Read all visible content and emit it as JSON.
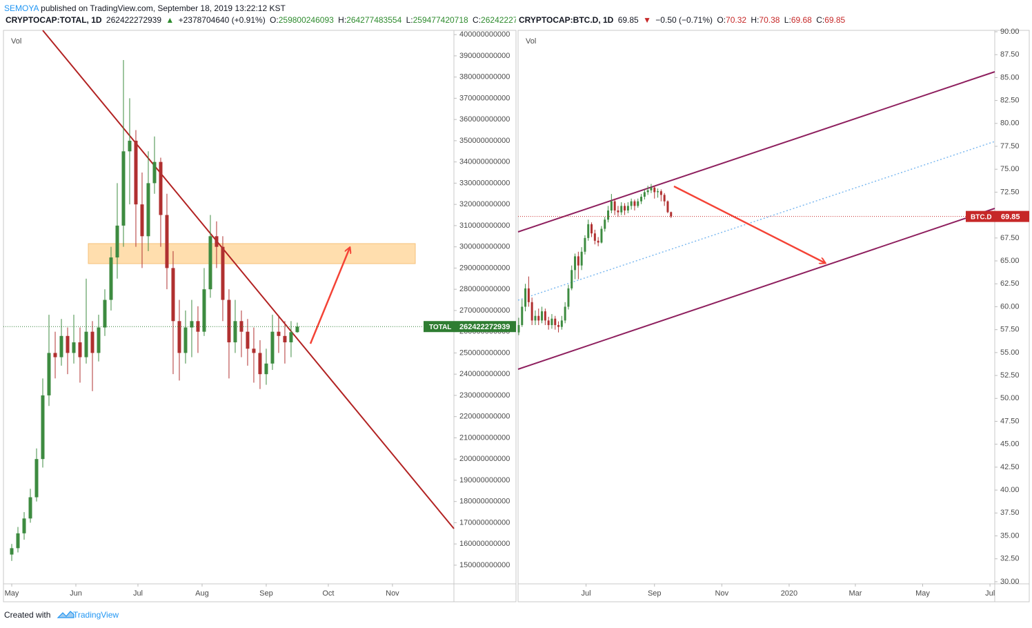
{
  "header": {
    "author": "SEMOYA",
    "published": "published on TradingView.com, September 18, 2019 13:22:12 KST"
  },
  "footer": {
    "created": "Created with",
    "brand": "TradingView"
  },
  "chart_data": [
    {
      "type": "candlestick",
      "symbol": "CRYPTOCAP:TOTAL, 1D",
      "change": "+2378704640 (+0.91%)",
      "ohlc_labels": [
        "O:",
        "H:",
        "L:",
        "C:"
      ],
      "pane_label": "Vol",
      "price_tag": "TOTAL",
      "up_color": "#3d8b40",
      "down_color": "#b03030",
      "last_color": "#2f7d32",
      "xlim": [
        -4,
        213.7
      ],
      "xticks": [
        {
          "value": 0,
          "label": "May"
        },
        {
          "value": 31,
          "label": "Jun"
        },
        {
          "value": 61,
          "label": "Jul"
        },
        {
          "value": 92,
          "label": "Aug"
        },
        {
          "value": 123,
          "label": "Sep"
        },
        {
          "value": 153,
          "label": "Oct"
        },
        {
          "value": 184,
          "label": "Nov"
        }
      ],
      "ylim": [
        141200000000.0,
        402000000000.0
      ],
      "yticks": [
        150000000000.0,
        160000000000.0,
        170000000000.0,
        180000000000.0,
        190000000000.0,
        200000000000.0,
        210000000000.0,
        220000000000.0,
        230000000000.0,
        240000000000.0,
        250000000000.0,
        260000000000.0,
        270000000000.0,
        280000000000.0,
        290000000000.0,
        300000000000.0,
        310000000000.0,
        320000000000.0,
        330000000000.0,
        340000000000.0,
        350000000000.0,
        360000000000.0,
        370000000000.0,
        380000000000.0,
        390000000000.0,
        400000000000.0
      ],
      "x": [
        0,
        3,
        6,
        9,
        12,
        15,
        18,
        21,
        24,
        27,
        30,
        33,
        36,
        39,
        42,
        45,
        48,
        51,
        54,
        57,
        60,
        63,
        66,
        69,
        72,
        75,
        78,
        81,
        84,
        87,
        90,
        93,
        96,
        99,
        102,
        105,
        108,
        111,
        114,
        117,
        120,
        123,
        126,
        129,
        132,
        135,
        138
      ],
      "ohlc": [
        [
          155000000000.0,
          160000000000.0,
          152000000000.0,
          158000000000.0
        ],
        [
          158000000000.0,
          168000000000.0,
          156000000000.0,
          165000000000.0
        ],
        [
          165000000000.0,
          175000000000.0,
          162000000000.0,
          172000000000.0
        ],
        [
          172000000000.0,
          186000000000.0,
          170000000000.0,
          182000000000.0
        ],
        [
          182000000000.0,
          205000000000.0,
          180000000000.0,
          200000000000.0
        ],
        [
          200000000000.0,
          238000000000.0,
          196000000000.0,
          230000000000.0
        ],
        [
          230000000000.0,
          268000000000.0,
          225000000000.0,
          250000000000.0
        ],
        [
          250000000000.0,
          260000000000.0,
          238000000000.0,
          248000000000.0
        ],
        [
          248000000000.0,
          266000000000.0,
          244000000000.0,
          258000000000.0
        ],
        [
          258000000000.0,
          262000000000.0,
          240000000000.0,
          250000000000.0
        ],
        [
          250000000000.0,
          268000000000.0,
          245000000000.0,
          255000000000.0
        ],
        [
          255000000000.0,
          262000000000.0,
          236000000000.0,
          248000000000.0
        ],
        [
          248000000000.0,
          285000000000.0,
          245000000000.0,
          260000000000.0
        ],
        [
          260000000000.0,
          265000000000.0,
          232000000000.0,
          250000000000.0
        ],
        [
          250000000000.0,
          268000000000.0,
          246000000000.0,
          262000000000.0
        ],
        [
          262000000000.0,
          280000000000.0,
          258000000000.0,
          275000000000.0
        ],
        [
          275000000000.0,
          300000000000.0,
          270000000000.0,
          295000000000.0
        ],
        [
          295000000000.0,
          330000000000.0,
          285000000000.0,
          310000000000.0
        ],
        [
          310000000000.0,
          388000000000.0,
          300000000000.0,
          345000000000.0
        ],
        [
          345000000000.0,
          370000000000.0,
          320000000000.0,
          350000000000.0
        ],
        [
          350000000000.0,
          355000000000.0,
          300000000000.0,
          320000000000.0
        ],
        [
          320000000000.0,
          335000000000.0,
          290000000000.0,
          305000000000.0
        ],
        [
          305000000000.0,
          345000000000.0,
          298000000000.0,
          330000000000.0
        ],
        [
          330000000000.0,
          352000000000.0,
          325000000000.0,
          340000000000.0
        ],
        [
          340000000000.0,
          342000000000.0,
          300000000000.0,
          315000000000.0
        ],
        [
          315000000000.0,
          325000000000.0,
          280000000000.0,
          290000000000.0
        ],
        [
          290000000000.0,
          298000000000.0,
          240000000000.0,
          265000000000.0
        ],
        [
          265000000000.0,
          275000000000.0,
          237000000000.0,
          250000000000.0
        ],
        [
          250000000000.0,
          270000000000.0,
          245000000000.0,
          262000000000.0
        ],
        [
          262000000000.0,
          275000000000.0,
          248000000000.0,
          265000000000.0
        ],
        [
          265000000000.0,
          272000000000.0,
          250000000000.0,
          260000000000.0
        ],
        [
          260000000000.0,
          290000000000.0,
          258000000000.0,
          280000000000.0
        ],
        [
          280000000000.0,
          315000000000.0,
          276000000000.0,
          305000000000.0
        ],
        [
          305000000000.0,
          312000000000.0,
          290000000000.0,
          300000000000.0
        ],
        [
          300000000000.0,
          305000000000.0,
          265000000000.0,
          275000000000.0
        ],
        [
          275000000000.0,
          280000000000.0,
          238000000000.0,
          255000000000.0
        ],
        [
          255000000000.0,
          275000000000.0,
          250000000000.0,
          265000000000.0
        ],
        [
          265000000000.0,
          270000000000.0,
          248000000000.0,
          260000000000.0
        ],
        [
          260000000000.0,
          266000000000.0,
          244000000000.0,
          252000000000.0
        ],
        [
          252000000000.0,
          262000000000.0,
          236000000000.0,
          250000000000.0
        ],
        [
          250000000000.0,
          256000000000.0,
          233000000000.0,
          240000000000.0
        ],
        [
          240000000000.0,
          252000000000.0,
          235000000000.0,
          245000000000.0
        ],
        [
          245000000000.0,
          268000000000.0,
          242000000000.0,
          260000000000.0
        ],
        [
          260000000000.0,
          267000000000.0,
          250000000000.0,
          258000000000.0
        ],
        [
          258000000000.0,
          265000000000.0,
          245000000000.0,
          255000000000.0
        ],
        [
          255000000000.0,
          265000000000.0,
          248000000000.0,
          259800000000.0
        ],
        [
          259800246093,
          264277483554,
          259477420718,
          262422272939
        ]
      ]
    },
    {
      "type": "candlestick",
      "symbol": "CRYPTOCAP:BTC.D, 1D",
      "change": "−0.50 (−0.71%)",
      "ohlc_labels": [
        "O:",
        "H:",
        "L:",
        "C:"
      ],
      "pane_label": "Vol",
      "price_tag": "BTC.D",
      "up_color": "#3d8b40",
      "down_color": "#b03030",
      "last_color": "#c62828",
      "xlim": [
        -0.6,
        431.3
      ],
      "xticks": [
        {
          "value": 61,
          "label": "Jul"
        },
        {
          "value": 123,
          "label": "Sep"
        },
        {
          "value": 184,
          "label": "Nov"
        },
        {
          "value": 245,
          "label": "2020"
        },
        {
          "value": 305,
          "label": "Mar"
        },
        {
          "value": 366,
          "label": "May"
        },
        {
          "value": 427,
          "label": "Jul"
        }
      ],
      "ylim": [
        29.77,
        90.15
      ],
      "yticks": [
        {
          "value": 30,
          "label": "30.00"
        },
        {
          "value": 32.5,
          "label": "32.50"
        },
        {
          "value": 35,
          "label": "35.00"
        },
        {
          "value": 37.5,
          "label": "37.50"
        },
        {
          "value": 40,
          "label": "40.00"
        },
        {
          "value": 42.5,
          "label": "42.50"
        },
        {
          "value": 45,
          "label": "45.00"
        },
        {
          "value": 47.5,
          "label": "47.50"
        },
        {
          "value": 50,
          "label": "50.00"
        },
        {
          "value": 52.5,
          "label": "52.50"
        },
        {
          "value": 55,
          "label": "55.00"
        },
        {
          "value": 57.5,
          "label": "57.50"
        },
        {
          "value": 60,
          "label": "60.00"
        },
        {
          "value": 62.5,
          "label": "62.50"
        },
        {
          "value": 65,
          "label": "65.00"
        },
        {
          "value": 67.5,
          "label": "67.50"
        },
        {
          "value": 70,
          "label": "70.00"
        },
        {
          "value": 72.5,
          "label": "72.50"
        },
        {
          "value": 75,
          "label": "75.00"
        },
        {
          "value": 77.5,
          "label": "77.50"
        },
        {
          "value": 80,
          "label": "80.00"
        },
        {
          "value": 82.5,
          "label": "82.50"
        },
        {
          "value": 85,
          "label": "85.00"
        },
        {
          "value": 87.5,
          "label": "87.50"
        },
        {
          "value": 90,
          "label": "90.00"
        }
      ],
      "x": [
        0,
        3,
        6,
        9,
        12,
        15,
        18,
        21,
        24,
        27,
        30,
        33,
        36,
        39,
        42,
        45,
        48,
        51,
        54,
        57,
        60,
        63,
        66,
        69,
        72,
        75,
        78,
        81,
        84,
        87,
        90,
        93,
        96,
        99,
        102,
        105,
        108,
        111,
        114,
        117,
        120,
        123,
        126,
        129,
        132,
        135,
        138
      ],
      "ohlc": [
        [
          57.2,
          58.8,
          56.9,
          58
        ],
        [
          58,
          60.8,
          57.8,
          60
        ],
        [
          60,
          62.5,
          59.5,
          62
        ],
        [
          62,
          63.3,
          60,
          60.5
        ],
        [
          60.5,
          61,
          58,
          58.5
        ],
        [
          58.5,
          59.6,
          58,
          59
        ],
        [
          59,
          59.8,
          58,
          58.5
        ],
        [
          58.5,
          60,
          58.2,
          59.5
        ],
        [
          59.5,
          59.8,
          58,
          58.5
        ],
        [
          58.5,
          58.9,
          57.5,
          58
        ],
        [
          58,
          59.2,
          57.6,
          58.7
        ],
        [
          58.7,
          59,
          57.5,
          58
        ],
        [
          58,
          58.4,
          57.2,
          57.8
        ],
        [
          57.8,
          59,
          57.5,
          58.5
        ],
        [
          58.5,
          60.5,
          58.2,
          60
        ],
        [
          60,
          62.4,
          59.7,
          62
        ],
        [
          62,
          64.5,
          61.8,
          64
        ],
        [
          64,
          65.8,
          63,
          65.5
        ],
        [
          65.5,
          66,
          63,
          64.5
        ],
        [
          64.5,
          66.5,
          64,
          66
        ],
        [
          66,
          67.8,
          65.7,
          67.5
        ],
        [
          67.5,
          69.5,
          67.2,
          69
        ],
        [
          69,
          69.2,
          67.6,
          68
        ],
        [
          68,
          68.4,
          66.8,
          67.2
        ],
        [
          67.2,
          67.6,
          66.6,
          67
        ],
        [
          67,
          68.8,
          66.9,
          68.5
        ],
        [
          68.5,
          69.8,
          68.2,
          69.5
        ],
        [
          69.5,
          71,
          69.2,
          70.5
        ],
        [
          70.5,
          72.3,
          70.2,
          71.5
        ],
        [
          71.5,
          71.8,
          70,
          70.5
        ],
        [
          70.5,
          71,
          69.8,
          70.3
        ],
        [
          70.3,
          71.4,
          70,
          71
        ],
        [
          71,
          71.3,
          70,
          70.5
        ],
        [
          70.5,
          71.4,
          70.2,
          71
        ],
        [
          71,
          71.8,
          70.6,
          71.5
        ],
        [
          71.5,
          71.7,
          70.5,
          71
        ],
        [
          71,
          71.8,
          70.8,
          71.5
        ],
        [
          71.5,
          72.3,
          71.2,
          72
        ],
        [
          72,
          72.8,
          71.7,
          72.5
        ],
        [
          72.5,
          73.2,
          72.2,
          72.7
        ],
        [
          72.7,
          73.4,
          72.4,
          73
        ],
        [
          73,
          73.2,
          71.8,
          72.5
        ],
        [
          72.5,
          72.9,
          71.9,
          72.6
        ],
        [
          72.6,
          72.8,
          71.5,
          72.2
        ],
        [
          72.2,
          72.4,
          71,
          71.5
        ],
        [
          71.5,
          71.6,
          70.2,
          70.32
        ],
        [
          70.32,
          70.38,
          69.68,
          69.85
        ]
      ]
    }
  ]
}
